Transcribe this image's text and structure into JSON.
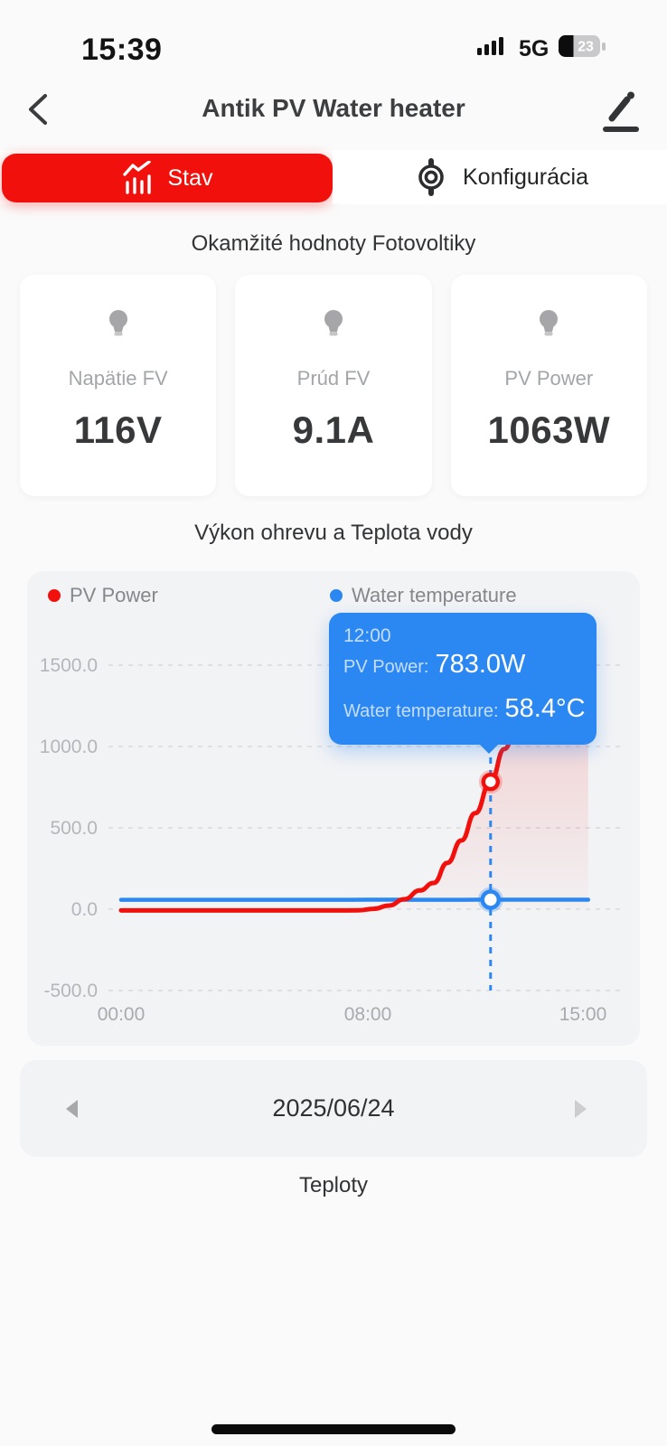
{
  "status_bar": {
    "time": "15:39",
    "network": "5G",
    "battery_percent": "23"
  },
  "header": {
    "title": "Antik PV Water heater"
  },
  "tabs": [
    {
      "label": "Stav",
      "icon": "bar-chart-icon",
      "active": true,
      "color": "#f2100c"
    },
    {
      "label": "Konfigurácia",
      "icon": "gear-icon",
      "active": false
    }
  ],
  "instant_values": {
    "title": "Okamžité hodnoty Fotovoltiky",
    "cards": [
      {
        "icon": "bulb-icon",
        "label": "Napätie FV",
        "value": "116V"
      },
      {
        "icon": "bulb-icon",
        "label": "Prúd FV",
        "value": "9.1A"
      },
      {
        "icon": "bulb-icon",
        "label": "PV Power",
        "value": "1063W"
      }
    ]
  },
  "chart_section": {
    "title": "Výkon ohrevu a Teplota vody"
  },
  "chart_data": {
    "type": "line",
    "title": "Výkon ohrevu a Teplota vody",
    "legend_position": "top",
    "grid": "dashed horizontal",
    "legend": [
      {
        "name": "PV Power",
        "color": "#f2100c"
      },
      {
        "name": "Water temperature",
        "color": "#2b87f1"
      }
    ],
    "x_axis": {
      "tick_labels": [
        "00:00",
        "08:00",
        "15:00"
      ],
      "tick_hours": [
        0,
        8,
        15
      ]
    },
    "y_axis": {
      "tick_labels": [
        "1500.0",
        "1000.0",
        "500.0",
        "0.0",
        "-500.0"
      ],
      "tick_values": [
        1500,
        1000,
        500,
        0,
        -500
      ],
      "range": [
        -740,
        1880
      ]
    },
    "series": [
      {
        "name": "PV Power",
        "unit": "W",
        "color": "#f2100c",
        "area_fill": true,
        "points": [
          [
            0,
            -8
          ],
          [
            1,
            -8
          ],
          [
            2,
            -8
          ],
          [
            3,
            -8
          ],
          [
            4,
            -8
          ],
          [
            5,
            -8
          ],
          [
            6,
            -8
          ],
          [
            7,
            -8
          ],
          [
            7.7,
            -7
          ],
          [
            8.2,
            2
          ],
          [
            8.7,
            22
          ],
          [
            9.2,
            61
          ],
          [
            9.7,
            115
          ],
          [
            10.15,
            161
          ],
          [
            10.6,
            285
          ],
          [
            11.05,
            422
          ],
          [
            11.5,
            590
          ],
          [
            12,
            783
          ],
          [
            12.45,
            985
          ],
          [
            12.9,
            1175
          ],
          [
            13.35,
            1320
          ],
          [
            13.85,
            1425
          ],
          [
            14.4,
            1478
          ],
          [
            15.17,
            1500
          ]
        ]
      },
      {
        "name": "Water temperature",
        "unit": "°C",
        "color": "#2b87f1",
        "area_fill": false,
        "points": [
          [
            0,
            57.5
          ],
          [
            1.5,
            57.5
          ],
          [
            3,
            57.5
          ],
          [
            4.5,
            57.6
          ],
          [
            6,
            57.7
          ],
          [
            7.5,
            57.9
          ],
          [
            8.5,
            58.1
          ],
          [
            9.5,
            57.9
          ],
          [
            10.5,
            57.6
          ],
          [
            11.2,
            57.8
          ],
          [
            12,
            58.4
          ],
          [
            13,
            58.4
          ],
          [
            14,
            58.3
          ],
          [
            15.17,
            58.4
          ]
        ]
      }
    ],
    "highlight": {
      "hour": 12,
      "pv_value_w": 783.0,
      "water_value_c": 58.4,
      "tooltip": {
        "time": "12:00",
        "pv_label": "PV Power:",
        "pv_value": "783.0W",
        "water_label": "Water temperature:",
        "water_value": "58.4°C"
      }
    }
  },
  "date_picker": {
    "value": "2025/06/24"
  },
  "temperatures_section": {
    "title": "Teploty"
  }
}
